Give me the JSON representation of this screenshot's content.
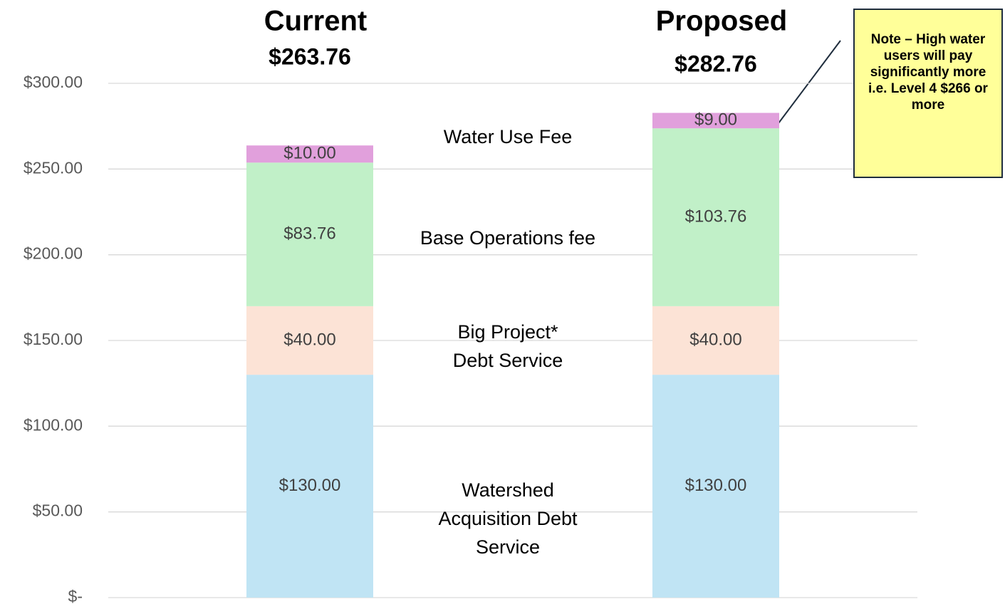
{
  "chart_data": {
    "type": "stacked_bar",
    "categories": [
      "Current",
      "Proposed"
    ],
    "total_labels": [
      "$263.76",
      "$282.76"
    ],
    "series": [
      {
        "name": "Watershed Acquisition Debt Service",
        "color": "#c0e4f4",
        "values": [
          130,
          130
        ],
        "value_labels": [
          "$130.00",
          "$130.00"
        ]
      },
      {
        "name": "Big Project* Debt Service",
        "color": "#fce3d6",
        "values": [
          40,
          40
        ],
        "value_labels": [
          "$40.00",
          "$40.00"
        ]
      },
      {
        "name": "Base Operations fee",
        "color": "#c1f0c8",
        "values": [
          83.76,
          103.76
        ],
        "value_labels": [
          "$83.76",
          "$103.76"
        ]
      },
      {
        "name": "Water Use Fee",
        "color": "#e1a0dc",
        "values": [
          10,
          9
        ],
        "value_labels": [
          "$10.00",
          "$9.00"
        ]
      }
    ],
    "ylim": [
      0,
      300
    ],
    "yticks": [
      {
        "value": 0,
        "label": "$-"
      },
      {
        "value": 50,
        "label": "$50.00"
      },
      {
        "value": 100,
        "label": "$100.00"
      },
      {
        "value": 150,
        "label": "$150.00"
      },
      {
        "value": 200,
        "label": "$200.00"
      },
      {
        "value": 250,
        "label": "$250.00"
      },
      {
        "value": 300,
        "label": "$300.00"
      }
    ],
    "grid": true,
    "annotation": {
      "note": "Note – High water users will pay significantly more i.e. Level 4 $266 or more"
    }
  }
}
